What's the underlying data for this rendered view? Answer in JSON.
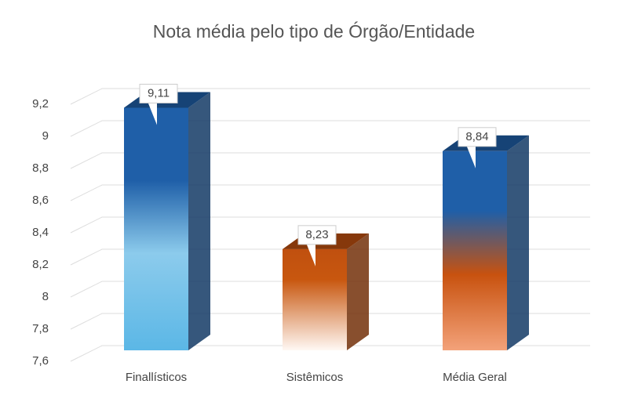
{
  "chart_data": {
    "type": "bar3d",
    "title": "Nota média pelo tipo de Órgão/Entidade",
    "categories": [
      "Finallísticos",
      "Sistêmicos",
      "Média Geral"
    ],
    "values": [
      9.11,
      8.23,
      8.84
    ],
    "value_labels": [
      "9,11",
      "8,23",
      "8,84"
    ],
    "colors": [
      "#1f5fa8",
      "#c0500f",
      "#1f5fa8"
    ],
    "ylim": [
      7.6,
      9.2
    ],
    "yticks": [
      {
        "value": 7.6,
        "label": "7,6"
      },
      {
        "value": 7.8,
        "label": "7,8"
      },
      8,
      {
        "value": 8.2,
        "label": "8,2"
      },
      {
        "value": 8.4,
        "label": "8,4"
      },
      {
        "value": 8.6,
        "label": "8,6"
      },
      {
        "value": 8.8,
        "label": "8,8"
      },
      9,
      {
        "value": 9.2,
        "label": "9,2"
      }
    ],
    "grid": true
  }
}
